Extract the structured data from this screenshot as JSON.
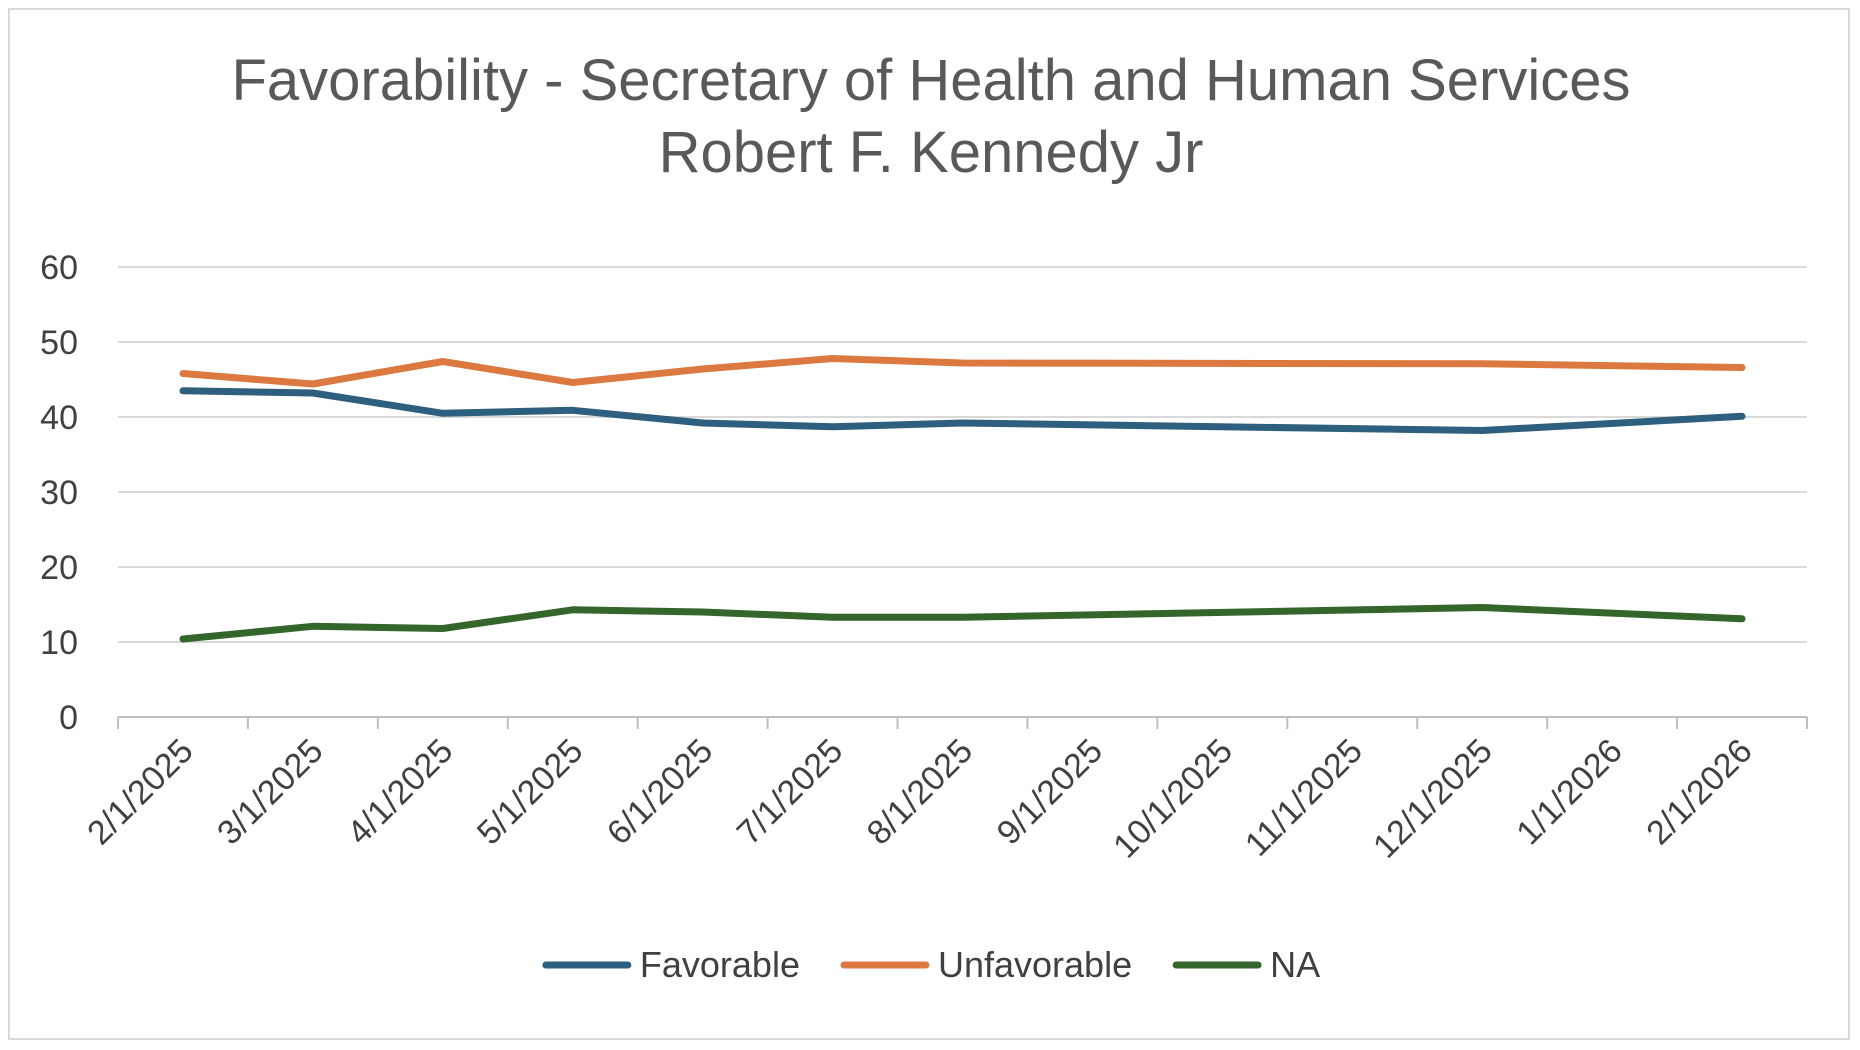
{
  "chart_data": {
    "type": "line",
    "title": [
      "Favorability - Secretary of Health and Human Services",
      "Robert F. Kennedy Jr"
    ],
    "xlabel": "",
    "ylabel": "",
    "ylim": [
      0,
      60
    ],
    "yticks": [
      0,
      10,
      20,
      30,
      40,
      50,
      60
    ],
    "grid": true,
    "legend": "bottom",
    "categories": [
      "2/1/2025",
      "3/1/2025",
      "4/1/2025",
      "5/1/2025",
      "6/1/2025",
      "7/1/2025",
      "8/1/2025",
      "9/1/2025",
      "10/1/2025",
      "11/1/2025",
      "12/1/2025",
      "1/1/2026",
      "2/1/2026"
    ],
    "series": [
      {
        "name": "Favorable",
        "color": "#2e5f7f",
        "points": [
          [
            0,
            43.5
          ],
          [
            1,
            43.2
          ],
          [
            2,
            40.5
          ],
          [
            3,
            40.9
          ],
          [
            4,
            39.2
          ],
          [
            5,
            38.7
          ],
          [
            6,
            39.2
          ],
          [
            10,
            38.2
          ],
          [
            12,
            40.1
          ]
        ]
      },
      {
        "name": "Unfavorable",
        "color": "#db7940",
        "points": [
          [
            0,
            45.8
          ],
          [
            1,
            44.4
          ],
          [
            2,
            47.4
          ],
          [
            3,
            44.6
          ],
          [
            4,
            46.4
          ],
          [
            5,
            47.8
          ],
          [
            6,
            47.2
          ],
          [
            10,
            47.1
          ],
          [
            12,
            46.6
          ]
        ]
      },
      {
        "name": "NA",
        "color": "#34652b",
        "points": [
          [
            0,
            10.4
          ],
          [
            1,
            12.1
          ],
          [
            2,
            11.8
          ],
          [
            3,
            14.3
          ],
          [
            4,
            14.0
          ],
          [
            5,
            13.3
          ],
          [
            6,
            13.3
          ],
          [
            10,
            14.6
          ],
          [
            12,
            13.1
          ]
        ]
      }
    ]
  }
}
